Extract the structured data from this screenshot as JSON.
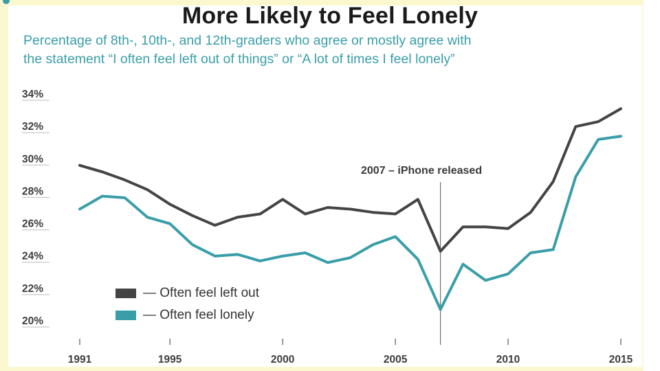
{
  "chart_data": {
    "type": "line",
    "title": "More Likely to Feel Lonely",
    "subtitle_line1": "Percentage of 8th-, 10th-, and 12th-graders who agree or mostly agree with",
    "subtitle_line2": "the statement “I often feel left out of things” or “A lot of times I feel lonely”",
    "x": [
      1991,
      1992,
      1993,
      1994,
      1995,
      1996,
      1997,
      1998,
      1999,
      2000,
      2001,
      2002,
      2003,
      2004,
      2005,
      2006,
      2007,
      2008,
      2009,
      2010,
      2011,
      2012,
      2013,
      2014,
      2015
    ],
    "series": [
      {
        "name": "Often feel left out",
        "legend_label": "— Often feel left out",
        "color": "#444444",
        "values": [
          29.6,
          29.2,
          28.7,
          28.1,
          27.2,
          26.5,
          25.9,
          26.4,
          26.6,
          27.5,
          26.6,
          27.0,
          26.9,
          26.7,
          26.6,
          27.5,
          24.3,
          25.8,
          25.8,
          25.7,
          26.7,
          28.6,
          32.0,
          32.3,
          33.1
        ]
      },
      {
        "name": "Often feel lonely",
        "legend_label": "— Often feel lonely",
        "color": "#3a9ea8",
        "values": [
          26.9,
          27.7,
          27.6,
          26.4,
          26.0,
          24.7,
          24.0,
          24.1,
          23.7,
          24.0,
          24.2,
          23.6,
          23.9,
          24.7,
          25.2,
          23.8,
          20.7,
          23.5,
          22.5,
          22.9,
          24.2,
          24.4,
          28.9,
          31.2,
          31.4
        ]
      }
    ],
    "y_ticks": [
      "34%",
      "32%",
      "30%",
      "28%",
      "26%",
      "24%",
      "22%",
      "20%"
    ],
    "x_ticks": [
      "1991",
      "1995",
      "2000",
      "2005",
      "2010",
      "2015"
    ],
    "ylim": [
      20,
      34
    ],
    "annotation": {
      "text": "2007 – iPhone released",
      "x": 2007
    },
    "legend": "bottom-left"
  }
}
